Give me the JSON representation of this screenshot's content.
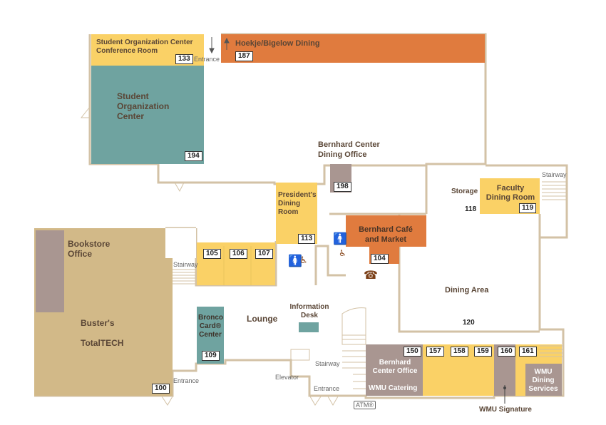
{
  "rooms": {
    "r133": {
      "name": "Student Organization Center Conference Room",
      "line1": "Student Organization Center",
      "line2": "Conference Room",
      "number": "133"
    },
    "r187": {
      "name": "Hoekje/Bigelow Dining",
      "number": "187"
    },
    "r194": {
      "line1": "Student",
      "line2": "Organization",
      "line3": "Center",
      "number": "194"
    },
    "r198": {
      "line1": "Bernhard Center",
      "line2": "Dining Office",
      "number": "198"
    },
    "r118": {
      "name": "Storage",
      "number": "118"
    },
    "r119": {
      "line1": "Faculty",
      "line2": "Dining Room",
      "number": "119"
    },
    "r113": {
      "line1": "President's",
      "line2": "Dining",
      "line3": "Room",
      "number": "113"
    },
    "r104": {
      "line1": "Bernhard Café",
      "line2": "and Market",
      "number": "104"
    },
    "r105": {
      "number": "105"
    },
    "r106": {
      "number": "106"
    },
    "r107": {
      "number": "107"
    },
    "r100": {
      "line1": "Buster's",
      "line2": "TotalTECH",
      "number": "100"
    },
    "bookstore": {
      "line1": "Bookstore",
      "line2": "Office"
    },
    "r109": {
      "line1": "Bronco",
      "line2": "Card®",
      "line3": "Center",
      "number": "109"
    },
    "r120": {
      "name": "Dining Area",
      "number": "120"
    },
    "r150": {
      "line1": "Bernhard",
      "line2": "Center Office",
      "line3": "WMU Catering",
      "number": "150"
    },
    "r157": {
      "number": "157"
    },
    "r158": {
      "number": "158"
    },
    "r159": {
      "number": "159"
    },
    "r160": {
      "number": "160"
    },
    "r161": {
      "line1": "WMU",
      "line2": "Dining",
      "line3": "Services",
      "number": "161"
    },
    "signature": {
      "name": "WMU Signature"
    }
  },
  "labels": {
    "lounge": "Lounge",
    "info_desk_1": "Information",
    "info_desk_2": "Desk",
    "entrance_top": "Entrance",
    "entrance_left": "Entrance",
    "entrance_bottom": "Entrance",
    "stairway_left": "Stairway",
    "stairway_right": "Stairway",
    "stairway_bottom": "Stairway",
    "elevator": "Elevator",
    "atm": "ATM®"
  },
  "icons": [
    "restroom-icon",
    "accessible-icon",
    "phone-icon",
    "arrow-down-icon",
    "arrow-up-icon"
  ],
  "colors": {
    "yellow": "#fad166",
    "orange": "#e07b3e",
    "teal": "#6fa3a0",
    "tan": "#d2b988",
    "gray": "#a99691",
    "wall": "#d3c2a6",
    "text": "#5a4636"
  }
}
